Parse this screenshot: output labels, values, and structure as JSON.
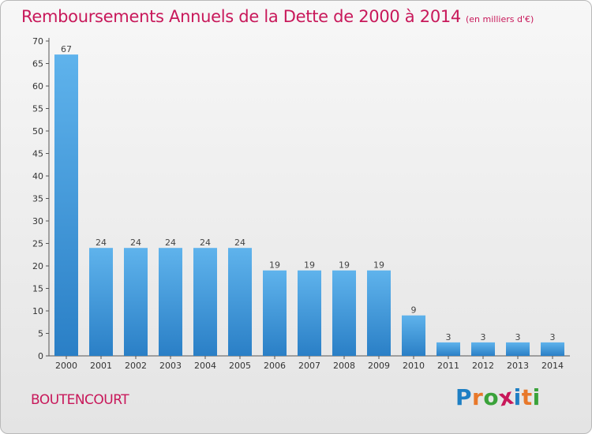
{
  "header": {
    "title": "Remboursements Annuels de la Dette de 2000 à 2014",
    "subtitle": "(en milliers d'€)"
  },
  "footer": {
    "commune": "BOUTENCOURT",
    "logo": "Proxiti",
    "logo_colors": [
      "#1e7fc4",
      "#e8782a",
      "#3aa23a",
      "#c8185a",
      "#1e7fc4",
      "#e8782a",
      "#3aa23a"
    ]
  },
  "colors": {
    "bar_top": "#5fb3ec",
    "bar_bottom": "#2a7fc6",
    "title": "#c8185a"
  },
  "chart_data": {
    "type": "bar",
    "categories": [
      "2000",
      "2001",
      "2002",
      "2003",
      "2004",
      "2005",
      "2006",
      "2007",
      "2008",
      "2009",
      "2010",
      "2011",
      "2012",
      "2013",
      "2014"
    ],
    "values": [
      67,
      24,
      24,
      24,
      24,
      24,
      19,
      19,
      19,
      19,
      9,
      3,
      3,
      3,
      3
    ],
    "ylim": [
      0,
      70
    ],
    "yticks": [
      0,
      5,
      10,
      15,
      20,
      25,
      30,
      35,
      40,
      45,
      50,
      55,
      60,
      65,
      70
    ],
    "xlabel": "",
    "ylabel": "",
    "grid": false,
    "data_labels": true
  }
}
